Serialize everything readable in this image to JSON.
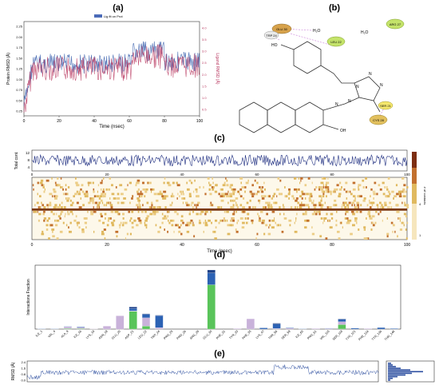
{
  "panels": {
    "a": {
      "label": "(a)",
      "xlabel": "Time (nsec)",
      "ylabel_left": "Protein RMSD (Å)",
      "ylabel_right": "Ligand RMSD (Å)",
      "legend": "Lig fit on Prot",
      "x_ticks": [
        "0",
        "20",
        "40",
        "60",
        "80",
        "100"
      ],
      "y_ticks_left": [
        "0.25",
        "0.50",
        "0.75",
        "1.00",
        "1.25",
        "1.50",
        "1.75",
        "2.00",
        "2.25"
      ],
      "y_ticks_right": [
        "0.5",
        "1.0",
        "1.5",
        "2.0",
        "2.5",
        "3.0",
        "3.5",
        "4.0"
      ]
    },
    "b": {
      "label": "(b)",
      "residue_labels": [
        "GLU 30",
        "LEU 22",
        "ARG 27",
        "TRP 24",
        "SER 21",
        "CYS 28"
      ],
      "atom_labels": [
        "H₂O",
        "H₂O",
        "HO",
        "OH",
        "N",
        "N",
        "N",
        "N",
        "N"
      ]
    },
    "c": {
      "label": "(c)",
      "top_ylabel": "Total cont.",
      "top_yticks": [
        "12",
        "8",
        "4"
      ],
      "xlabel": "Time (nsec)",
      "x_ticks": [
        "0",
        "20",
        "40",
        "60",
        "80",
        "100"
      ],
      "colorbar_label": "# of contacts",
      "colorbar_ticks": [
        "4",
        "1"
      ]
    },
    "d": {
      "label": "(d)",
      "ylabel": "Interactions Fraction"
    },
    "e": {
      "label": "(e)",
      "ylabel": "RMSD (Å)",
      "y_ticks": [
        "2.4",
        "1.6",
        "0.8",
        "0.0"
      ]
    }
  },
  "chart_data": [
    {
      "panel": "d",
      "type": "bar",
      "categories": [
        "ILE_1",
        "VAL_4",
        "ALA_8",
        "ILE_16",
        "LYS_18",
        "ASN_19",
        "GLU_20",
        "ASP_21",
        "LEU_22",
        "TRP_24",
        "PRO_25",
        "PRO_26",
        "ARG_28",
        "GLU_30",
        "PHE_31",
        "TYR_33",
        "PHE_35",
        "LYS_47",
        "THR_56",
        "SER_59",
        "ILE_60",
        "PRO_61",
        "VAL_115",
        "SER_118",
        "TYR_121",
        "PHE_134",
        "TYR_136",
        "THR_146"
      ],
      "series": [
        {
          "color": "#59c45a",
          "values": [
            0,
            0,
            0.02,
            0.02,
            0,
            0,
            0,
            0.6,
            0.1,
            0,
            0,
            0,
            0,
            1.5,
            0,
            0,
            0,
            0,
            0,
            0,
            0,
            0,
            0,
            0.15,
            0,
            0,
            0,
            0
          ]
        },
        {
          "color": "#c9b2da",
          "values": [
            0,
            0,
            0.06,
            0.04,
            0.01,
            0.1,
            0.45,
            0.02,
            0.28,
            0.05,
            0,
            0,
            0,
            0,
            0,
            0.02,
            0.35,
            0,
            0.02,
            0.03,
            0,
            0.02,
            0.02,
            0.1,
            0,
            0.02,
            0,
            0
          ]
        },
        {
          "color": "#2c62b4",
          "values": [
            0.01,
            0.01,
            0.01,
            0.02,
            0,
            0,
            0,
            0.08,
            0.12,
            0.4,
            0,
            0,
            0,
            0.4,
            0,
            0,
            0,
            0.04,
            0.15,
            0.02,
            0.01,
            0,
            0.01,
            0.08,
            0.03,
            0,
            0.05,
            0.02
          ]
        },
        {
          "color": "#1c3f86",
          "values": [
            0,
            0,
            0,
            0,
            0,
            0,
            0,
            0.05,
            0.02,
            0.02,
            0,
            0,
            0,
            0.1,
            0,
            0,
            0,
            0,
            0.03,
            0,
            0,
            0,
            0,
            0.02,
            0,
            0,
            0,
            0
          ]
        }
      ]
    }
  ]
}
